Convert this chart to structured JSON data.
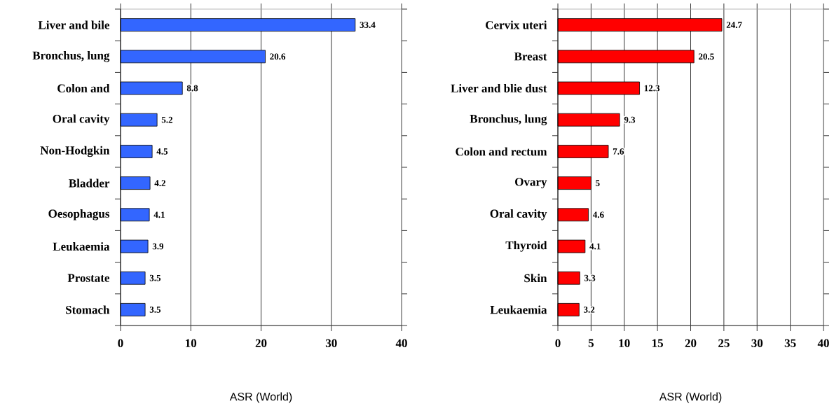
{
  "chart_data": [
    {
      "type": "bar",
      "orientation": "horizontal",
      "categories": [
        "Liver and bile",
        "Bronchus, lung",
        "Colon and",
        "Oral cavity",
        "Non-Hodgkin",
        "Bladder",
        "Oesophagus",
        "Leukaemia",
        "Prostate",
        "Stomach"
      ],
      "values": [
        33.4,
        20.6,
        8.8,
        5.2,
        4.5,
        4.2,
        4.1,
        3.9,
        3.5,
        3.5
      ],
      "color": "#3366ff",
      "xlim": [
        0,
        40
      ],
      "xticks": [
        0,
        10,
        20,
        30,
        40
      ],
      "xlabel": "ASR (World)",
      "grid": "x",
      "data_labels": true
    },
    {
      "type": "bar",
      "orientation": "horizontal",
      "categories": [
        "Cervix uteri",
        "Breast",
        "Liver and blie dust",
        "Bronchus, lung",
        "Colon and rectum",
        "Ovary",
        "Oral cavity",
        "Thyroid",
        "Skin",
        "Leukaemia"
      ],
      "values": [
        24.7,
        20.5,
        12.3,
        9.3,
        7.6,
        5,
        4.6,
        4.1,
        3.3,
        3.2
      ],
      "color": "#ff0000",
      "xlim": [
        0,
        40
      ],
      "xticks": [
        0,
        5,
        10,
        15,
        20,
        25,
        30,
        35,
        40
      ],
      "xlabel": "ASR (World)",
      "grid": "x",
      "data_labels": true
    }
  ]
}
